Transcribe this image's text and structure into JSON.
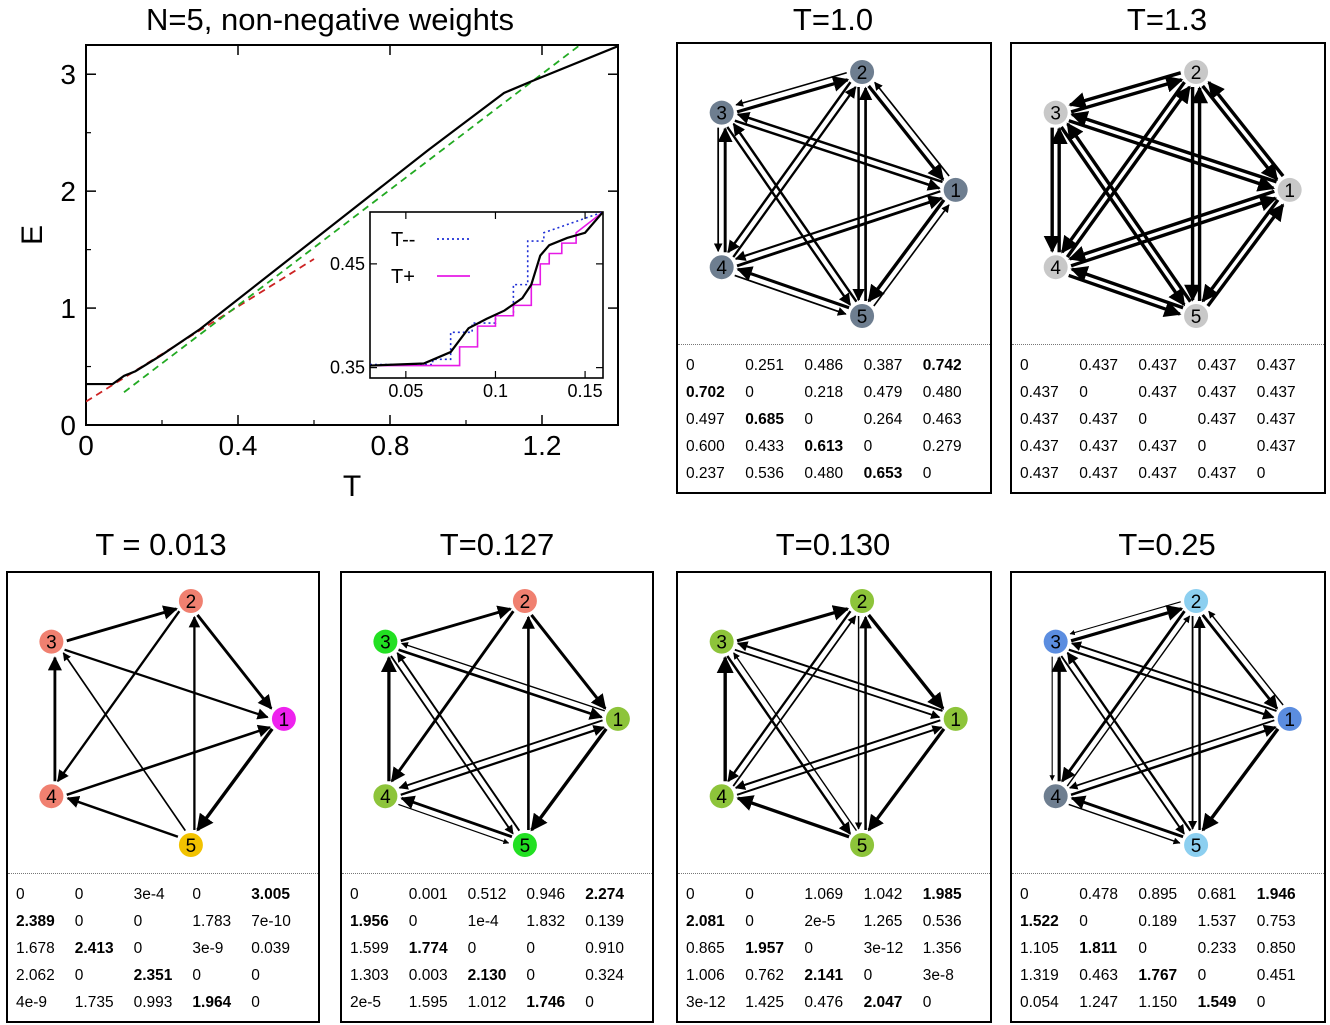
{
  "main_chart": {
    "title": "N=5, non-negative weights",
    "xlabel": "T",
    "ylabel": "E",
    "xticks": [
      "0",
      "0.4",
      "0.8",
      "1.2"
    ],
    "yticks": [
      "0",
      "1",
      "2",
      "3"
    ],
    "inset": {
      "xticks": [
        "0.05",
        "0.1",
        "0.15"
      ],
      "yticks": [
        "0.35",
        "0.45"
      ],
      "legend": [
        {
          "label": "T--",
          "color": "#1f2fd6",
          "style": "dotted"
        },
        {
          "label": "T+",
          "color": "#e619e6",
          "style": "solid"
        }
      ]
    }
  },
  "chart_data": [
    {
      "type": "line",
      "title": "N=5, non-negative weights",
      "xlabel": "T",
      "ylabel": "E",
      "xlim": [
        0,
        1.4
      ],
      "ylim": [
        0,
        3.25
      ],
      "grid": false,
      "series": [
        {
          "color": "#000000",
          "style": "solid",
          "x": [
            0,
            0.07,
            0.1,
            0.13,
            0.2,
            0.3,
            0.5,
            0.7,
            0.9,
            1.1,
            1.18,
            1.4
          ],
          "y": [
            0.35,
            0.35,
            0.42,
            0.46,
            0.6,
            0.82,
            1.33,
            1.84,
            2.35,
            2.84,
            2.95,
            3.24
          ]
        },
        {
          "color": "#cc2222",
          "style": "dashed",
          "x": [
            0,
            0.6
          ],
          "y": [
            0.2,
            1.42
          ]
        },
        {
          "color": "#22aa22",
          "style": "dashed",
          "x": [
            0.1,
            1.3
          ],
          "y": [
            0.28,
            3.25
          ]
        }
      ],
      "inset": {
        "xlim": [
          0.03,
          0.16
        ],
        "ylim": [
          0.34,
          0.5
        ],
        "series": [
          {
            "name": "T--",
            "color": "#1f2fd6",
            "style": "dotted",
            "x": [
              0.03,
              0.065,
              0.065,
              0.075,
              0.075,
              0.087,
              0.087,
              0.1,
              0.1,
              0.11,
              0.11,
              0.118,
              0.118,
              0.127,
              0.127,
              0.16
            ],
            "y": [
              0.353,
              0.353,
              0.358,
              0.358,
              0.384,
              0.384,
              0.393,
              0.393,
              0.4,
              0.4,
              0.43,
              0.43,
              0.472,
              0.472,
              0.48,
              0.5
            ]
          },
          {
            "name": "T+",
            "color": "#e619e6",
            "style": "solid",
            "x": [
              0.03,
              0.08,
              0.08,
              0.09,
              0.09,
              0.1,
              0.1,
              0.11,
              0.11,
              0.12,
              0.12,
              0.125,
              0.125,
              0.13,
              0.13,
              0.137,
              0.137,
              0.145,
              0.145,
              0.16
            ],
            "y": [
              0.352,
              0.352,
              0.37,
              0.37,
              0.39,
              0.39,
              0.4,
              0.4,
              0.41,
              0.41,
              0.43,
              0.43,
              0.45,
              0.45,
              0.46,
              0.46,
              0.47,
              0.47,
              0.48,
              0.5
            ]
          },
          {
            "color": "#000000",
            "style": "solid",
            "x": [
              0.03,
              0.06,
              0.075,
              0.085,
              0.095,
              0.105,
              0.115,
              0.12,
              0.125,
              0.13,
              0.14,
              0.15,
              0.16
            ],
            "y": [
              0.352,
              0.354,
              0.365,
              0.388,
              0.397,
              0.405,
              0.417,
              0.43,
              0.458,
              0.468,
              0.475,
              0.48,
              0.5
            ]
          }
        ]
      }
    }
  ],
  "panels": [
    {
      "title": "T=1.0",
      "node_colors": [
        "#6e7e90",
        "#6e7e90",
        "#6e7e90",
        "#6e7e90",
        "#6e7e90"
      ],
      "matrix": [
        [
          "0",
          "0.251",
          "0.486",
          "0.387",
          "0.742"
        ],
        [
          "0.702",
          "0",
          "0.218",
          "0.479",
          "0.480"
        ],
        [
          "0.497",
          "0.685",
          "0",
          "0.264",
          "0.463"
        ],
        [
          "0.600",
          "0.433",
          "0.613",
          "0",
          "0.279"
        ],
        [
          "0.237",
          "0.536",
          "0.480",
          "0.653",
          "0"
        ]
      ],
      "bold": [
        [
          0,
          4
        ],
        [
          1,
          0
        ],
        [
          2,
          1
        ],
        [
          3,
          2
        ],
        [
          4,
          3
        ]
      ]
    },
    {
      "title": "T=1.3",
      "node_colors": [
        "#c8c8c8",
        "#c8c8c8",
        "#c8c8c8",
        "#c8c8c8",
        "#c8c8c8"
      ],
      "matrix": [
        [
          "0",
          "0.437",
          "0.437",
          "0.437",
          "0.437"
        ],
        [
          "0.437",
          "0",
          "0.437",
          "0.437",
          "0.437"
        ],
        [
          "0.437",
          "0.437",
          "0",
          "0.437",
          "0.437"
        ],
        [
          "0.437",
          "0.437",
          "0.437",
          "0",
          "0.437"
        ],
        [
          "0.437",
          "0.437",
          "0.437",
          "0.437",
          "0"
        ]
      ],
      "bold": []
    },
    {
      "title": "T = 0.013",
      "node_colors": [
        "#ee22ee",
        "#f08070",
        "#f08070",
        "#f08070",
        "#f2c200"
      ],
      "matrix": [
        [
          "0",
          "0",
          "3e-4",
          "0",
          "3.005"
        ],
        [
          "2.389",
          "0",
          "0",
          "1.783",
          "7e-10"
        ],
        [
          "1.678",
          "2.413",
          "0",
          "3e-9",
          "0.039"
        ],
        [
          "2.062",
          "0",
          "2.351",
          "0",
          "0"
        ],
        [
          "4e-9",
          "1.735",
          "0.993",
          "1.964",
          "0"
        ]
      ],
      "bold": [
        [
          0,
          4
        ],
        [
          1,
          0
        ],
        [
          2,
          1
        ],
        [
          3,
          2
        ],
        [
          4,
          3
        ]
      ]
    },
    {
      "title": "T=0.127",
      "node_colors": [
        "#8dc43a",
        "#f08070",
        "#22e022",
        "#8dc43a",
        "#22e022"
      ],
      "matrix": [
        [
          "0",
          "0.001",
          "0.512",
          "0.946",
          "2.274"
        ],
        [
          "1.956",
          "0",
          "1e-4",
          "1.832",
          "0.139"
        ],
        [
          "1.599",
          "1.774",
          "0",
          "0",
          "0.910"
        ],
        [
          "1.303",
          "0.003",
          "2.130",
          "0",
          "0.324"
        ],
        [
          "2e-5",
          "1.595",
          "1.012",
          "1.746",
          "0"
        ]
      ],
      "bold": [
        [
          0,
          4
        ],
        [
          1,
          0
        ],
        [
          2,
          1
        ],
        [
          3,
          2
        ],
        [
          4,
          3
        ]
      ]
    },
    {
      "title": "T=0.130",
      "node_colors": [
        "#8dc43a",
        "#8dc43a",
        "#8dc43a",
        "#8dc43a",
        "#8dc43a"
      ],
      "matrix": [
        [
          "0",
          "0",
          "1.069",
          "1.042",
          "1.985"
        ],
        [
          "2.081",
          "0",
          "2e-5",
          "1.265",
          "0.536"
        ],
        [
          "0.865",
          "1.957",
          "0",
          "3e-12",
          "1.356"
        ],
        [
          "1.006",
          "0.762",
          "2.141",
          "0",
          "3e-8"
        ],
        [
          "3e-12",
          "1.425",
          "0.476",
          "2.047",
          "0"
        ]
      ],
      "bold": [
        [
          0,
          4
        ],
        [
          1,
          0
        ],
        [
          2,
          1
        ],
        [
          3,
          2
        ],
        [
          4,
          3
        ]
      ]
    },
    {
      "title": "T=0.25",
      "node_colors": [
        "#5b8de0",
        "#8ccff0",
        "#5b8de0",
        "#6e7e90",
        "#8ccff0"
      ],
      "matrix": [
        [
          "0",
          "0.478",
          "0.895",
          "0.681",
          "1.946"
        ],
        [
          "1.522",
          "0",
          "0.189",
          "1.537",
          "0.753"
        ],
        [
          "1.105",
          "1.811",
          "0",
          "0.233",
          "0.850"
        ],
        [
          "1.319",
          "0.463",
          "1.767",
          "0",
          "0.451"
        ],
        [
          "0.054",
          "1.247",
          "1.150",
          "1.549",
          "0"
        ]
      ],
      "bold": [
        [
          0,
          4
        ],
        [
          1,
          0
        ],
        [
          2,
          1
        ],
        [
          3,
          2
        ],
        [
          4,
          3
        ]
      ]
    }
  ]
}
